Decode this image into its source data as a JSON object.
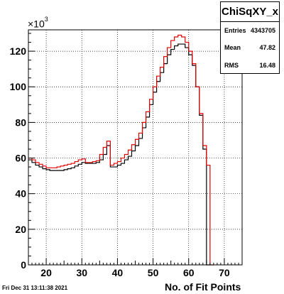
{
  "stats": {
    "title": "ChiSqXY_x",
    "rows": [
      {
        "label": "Entries",
        "value": "4343705"
      },
      {
        "label": "Mean",
        "value": "47.82"
      },
      {
        "label": "RMS",
        "value": "16.48"
      }
    ]
  },
  "footer": {
    "date": "Fri Dec 31 13:11:38 2021"
  },
  "colors": {
    "series_black": "#000000",
    "series_red": "#e00000"
  },
  "chart_data": {
    "type": "line",
    "xlabel": "No. of Fit Points",
    "ylabel": "",
    "y_exponent_prefix": "×10",
    "y_exponent_power": "3",
    "xlim": [
      15,
      75
    ],
    "ylim": [
      0,
      132000
    ],
    "grid": true,
    "x_ticks": [
      20,
      30,
      40,
      50,
      60,
      70
    ],
    "y_ticks": [
      0,
      20,
      40,
      60,
      80,
      100,
      120
    ],
    "bin_edges_start": 15,
    "bin_width": 1,
    "series": [
      {
        "color": "#000000",
        "values": [
          59000,
          57500,
          56000,
          55000,
          54000,
          53500,
          53000,
          53000,
          53000,
          53000,
          53500,
          54000,
          54500,
          55500,
          56500,
          57500,
          57000,
          57000,
          57000,
          57500,
          59000,
          62000,
          67000,
          55000,
          55000,
          56000,
          57000,
          59000,
          61000,
          64000,
          67000,
          71000,
          77000,
          83000,
          90000,
          97000,
          103000,
          108000,
          113000,
          118000,
          121000,
          123000,
          124000,
          124000,
          122000,
          118000,
          112000,
          100000,
          84000,
          65000,
          0
        ]
      },
      {
        "color": "#e00000",
        "values": [
          60000,
          59000,
          57500,
          56500,
          55500,
          54500,
          54500,
          54500,
          55000,
          55500,
          56000,
          56500,
          57000,
          58000,
          59000,
          59500,
          57500,
          57500,
          58000,
          58500,
          62000,
          66000,
          69500,
          56000,
          57000,
          58000,
          60000,
          62000,
          64500,
          67500,
          70500,
          74000,
          80000,
          86000,
          93000,
          100000,
          106000,
          111000,
          117000,
          122000,
          126000,
          128000,
          129000,
          128000,
          125000,
          120000,
          113000,
          100000,
          85000,
          67000,
          56000,
          0
        ]
      }
    ]
  }
}
